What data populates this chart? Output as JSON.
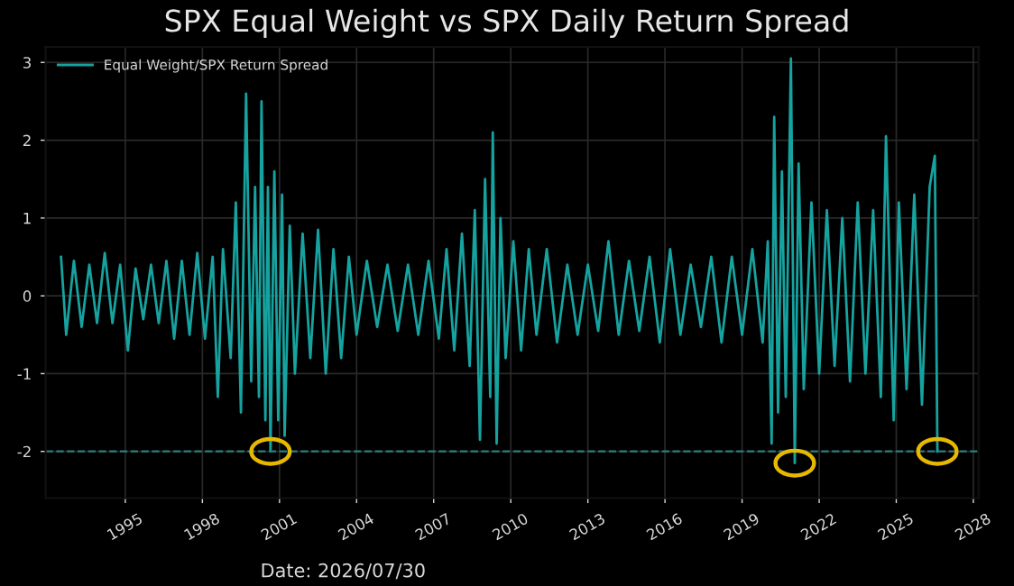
{
  "chart_data": {
    "type": "line",
    "title": "SPX Equal Weight vs SPX Daily Return Spread",
    "series": [
      {
        "name": "Equal Weight/SPX Return Spread",
        "color": "#16a3a0",
        "x": [
          1992.5,
          1992.7,
          1993.0,
          1993.3,
          1993.6,
          1993.9,
          1994.2,
          1994.5,
          1994.8,
          1995.1,
          1995.4,
          1995.7,
          1996.0,
          1996.3,
          1996.6,
          1996.9,
          1997.2,
          1997.5,
          1997.8,
          1998.1,
          1998.4,
          1998.6,
          1998.8,
          1999.1,
          1999.3,
          1999.5,
          1999.7,
          1999.9,
          2000.05,
          2000.2,
          2000.3,
          2000.45,
          2000.55,
          2000.65,
          2000.8,
          2000.95,
          2001.1,
          2001.2,
          2001.4,
          2001.6,
          2001.9,
          2002.2,
          2002.5,
          2002.8,
          2003.1,
          2003.4,
          2003.7,
          2004.0,
          2004.4,
          2004.8,
          2005.2,
          2005.6,
          2006.0,
          2006.4,
          2006.8,
          2007.2,
          2007.5,
          2007.8,
          2008.1,
          2008.4,
          2008.6,
          2008.8,
          2009.0,
          2009.2,
          2009.3,
          2009.45,
          2009.6,
          2009.8,
          2010.1,
          2010.4,
          2010.7,
          2011.0,
          2011.4,
          2011.8,
          2012.2,
          2012.6,
          2013.0,
          2013.4,
          2013.8,
          2014.2,
          2014.6,
          2015.0,
          2015.4,
          2015.8,
          2016.2,
          2016.6,
          2017.0,
          2017.4,
          2017.8,
          2018.2,
          2018.6,
          2019.0,
          2019.4,
          2019.8,
          2020.0,
          2020.15,
          2020.25,
          2020.4,
          2020.55,
          2020.7,
          2020.9,
          2021.05,
          2021.2,
          2021.4,
          2021.7,
          2022.0,
          2022.3,
          2022.6,
          2022.9,
          2023.2,
          2023.5,
          2023.8,
          2024.1,
          2024.4,
          2024.6,
          2024.9,
          2025.1,
          2025.4,
          2025.7,
          2026.0,
          2026.3,
          2026.5,
          2026.6
        ],
        "values": [
          0.5,
          -0.5,
          0.45,
          -0.4,
          0.4,
          -0.35,
          0.55,
          -0.35,
          0.4,
          -0.7,
          0.35,
          -0.3,
          0.4,
          -0.35,
          0.45,
          -0.55,
          0.45,
          -0.5,
          0.55,
          -0.55,
          0.5,
          -1.3,
          0.6,
          -0.8,
          1.2,
          -1.5,
          2.6,
          -1.1,
          1.4,
          -1.3,
          2.5,
          -1.6,
          1.4,
          -2.0,
          1.6,
          -1.6,
          1.3,
          -1.8,
          0.9,
          -1.0,
          0.8,
          -0.8,
          0.85,
          -1.0,
          0.6,
          -0.8,
          0.5,
          -0.5,
          0.45,
          -0.4,
          0.4,
          -0.45,
          0.4,
          -0.5,
          0.45,
          -0.55,
          0.6,
          -0.7,
          0.8,
          -0.9,
          1.1,
          -1.85,
          1.5,
          -1.3,
          2.1,
          -1.9,
          1.0,
          -0.8,
          0.7,
          -0.7,
          0.6,
          -0.5,
          0.6,
          -0.6,
          0.4,
          -0.5,
          0.4,
          -0.45,
          0.7,
          -0.5,
          0.45,
          -0.45,
          0.5,
          -0.6,
          0.6,
          -0.5,
          0.4,
          -0.4,
          0.5,
          -0.6,
          0.5,
          -0.5,
          0.6,
          -0.6,
          0.7,
          -1.9,
          2.3,
          -1.5,
          1.6,
          -1.3,
          3.05,
          -2.15,
          1.7,
          -1.2,
          1.2,
          -1.0,
          1.1,
          -0.9,
          1.0,
          -1.1,
          1.2,
          -1.0,
          1.1,
          -1.3,
          2.05,
          -1.6,
          1.2,
          -1.2,
          1.3,
          -1.4,
          1.4,
          1.8,
          -2.0
        ]
      }
    ],
    "xlim": [
      1991.9,
      2028.2
    ],
    "xticks": [
      1995,
      1998,
      2001,
      2004,
      2007,
      2010,
      2013,
      2016,
      2019,
      2022,
      2025,
      2028
    ],
    "ylim": [
      -2.6,
      3.2
    ],
    "yticks": [
      -2,
      -1,
      0,
      1,
      2,
      3
    ],
    "ref_lines": [
      {
        "axis": "y",
        "value": -2,
        "color": "#2a7f7c",
        "line_style": "dashed"
      }
    ],
    "grid": true,
    "legend": "top left",
    "annotations": [
      "Date: 2026/07/30"
    ]
  }
}
